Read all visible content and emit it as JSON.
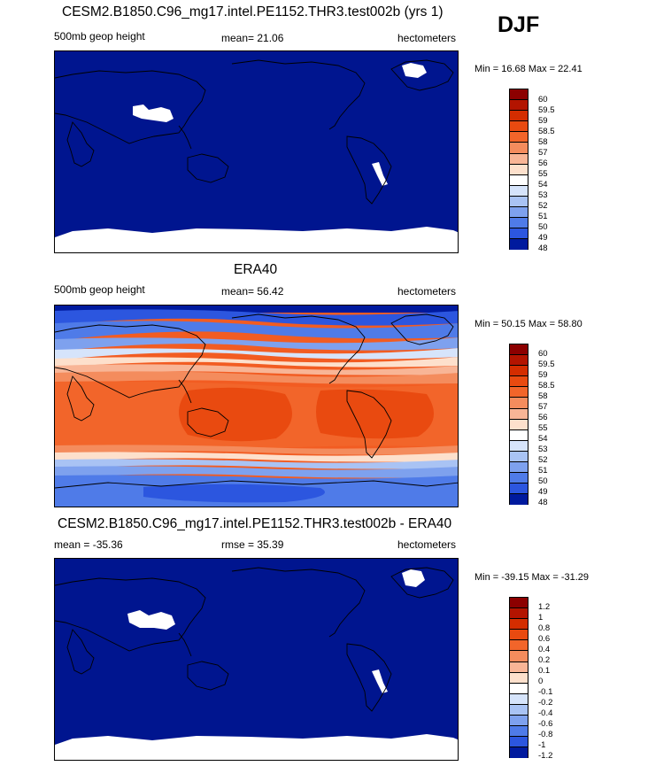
{
  "season": "DJF",
  "panels": [
    {
      "title": "CESM2.B1850.C96_mg17.intel.PE1152.THR3.test002b (yrs 1)",
      "left_label": "500mb geop height",
      "center_label": "mean=  21.06",
      "right_label": "hectometers",
      "minmax": "Min =  16.68 Max =  22.41",
      "colorbar_labels": [
        "60",
        "59.5",
        "59",
        "58.5",
        "58",
        "57",
        "56",
        "55",
        "54",
        "53",
        "52",
        "51",
        "50",
        "49",
        "48"
      ]
    },
    {
      "title": "ERA40",
      "left_label": "500mb geop height",
      "center_label": "mean=  56.42",
      "right_label": "hectometers",
      "minmax": "Min =  50.15 Max =  58.80",
      "colorbar_labels": [
        "60",
        "59.5",
        "59",
        "58.5",
        "58",
        "57",
        "56",
        "55",
        "54",
        "53",
        "52",
        "51",
        "50",
        "49",
        "48"
      ]
    },
    {
      "title": "CESM2.B1850.C96_mg17.intel.PE1152.THR3.test002b - ERA40",
      "left_label": "mean = -35.36",
      "center_label": "rmse =  35.39",
      "right_label": "hectometers",
      "minmax": "Min = -39.15 Max = -31.29",
      "colorbar_labels": [
        "1.2",
        "1",
        "0.8",
        "0.6",
        "0.4",
        "0.2",
        "0.1",
        "0",
        "-0.1",
        "-0.2",
        "-0.4",
        "-0.6",
        "-0.8",
        "-1",
        "-1.2"
      ]
    }
  ],
  "colors": {
    "field_background": "#00158f",
    "missing": "#ffffff",
    "colorbar_palette": [
      "#8c0000",
      "#b31400",
      "#d42d00",
      "#e94a10",
      "#f2652a",
      "#f48c5d",
      "#f8b596",
      "#fde0cc",
      "#ffffff",
      "#d6e4fb",
      "#a9c3f4",
      "#7ea1ee",
      "#4f7be8",
      "#2c56df",
      "#1232c8",
      "#001a9e",
      "#000a78"
    ]
  }
}
